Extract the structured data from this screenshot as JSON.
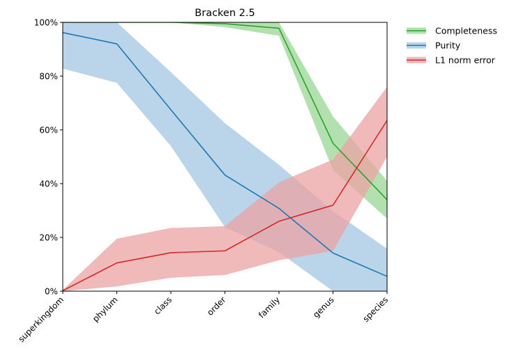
{
  "chart_data": {
    "type": "line",
    "title": "Bracken 2.5",
    "xlabel": "",
    "ylabel": "",
    "categories": [
      "superkingdom",
      "phylum",
      "class",
      "order",
      "family",
      "genus",
      "species"
    ],
    "ylim": [
      0,
      100
    ],
    "yticks": [
      0,
      20,
      40,
      60,
      80,
      100
    ],
    "ytick_labels": [
      "0%",
      "20%",
      "40%",
      "60%",
      "80%",
      "100%"
    ],
    "grid": false,
    "legend_position": "outside-top-right",
    "series": [
      {
        "name": "Completeness",
        "color": "#2ca02c",
        "band_color": "#98d594",
        "values": [
          100,
          100,
          100,
          99.5,
          97.8,
          55,
          34
        ],
        "lower": [
          100,
          100,
          100,
          98.2,
          95,
          45,
          27
        ],
        "upper": [
          100,
          100,
          100,
          100,
          100,
          65,
          41
        ]
      },
      {
        "name": "Purity",
        "color": "#1f77b4",
        "band_color": "#a3c6e2",
        "values": [
          96.2,
          92,
          67.5,
          43.2,
          30.8,
          14.2,
          5.5
        ],
        "lower": [
          82.8,
          77.5,
          54,
          23.8,
          14.5,
          0,
          0
        ],
        "upper": [
          100,
          100,
          81.5,
          62.5,
          47,
          29.8,
          15.8
        ]
      },
      {
        "name": "L1 norm error",
        "color": "#d62728",
        "band_color": "#eba3a4",
        "values": [
          0.2,
          10.5,
          14.3,
          15,
          26,
          32,
          63.5
        ],
        "lower": [
          0,
          1.8,
          5,
          6,
          11.5,
          15,
          50
        ],
        "upper": [
          0.5,
          19.5,
          23.5,
          24.2,
          40.5,
          49,
          76
        ]
      }
    ]
  }
}
